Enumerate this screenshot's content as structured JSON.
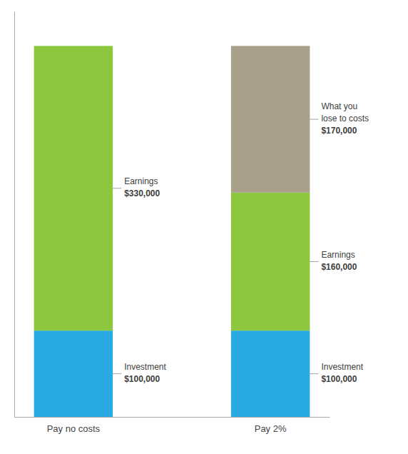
{
  "chart_data": {
    "type": "bar",
    "stacked": true,
    "categories": [
      "Pay no costs",
      "Pay 2%"
    ],
    "series": [
      {
        "name": "Investment",
        "color": "#29ABE2",
        "values": [
          100000,
          100000
        ],
        "value_labels": [
          "$100,000",
          "$100,000"
        ]
      },
      {
        "name": "Earnings",
        "color": "#8DC63F",
        "values": [
          330000,
          160000
        ],
        "value_labels": [
          "$330,000",
          "$160,000"
        ]
      },
      {
        "name": "What you\nlose to costs",
        "color": "#A8A08A",
        "values": [
          0,
          170000
        ],
        "value_labels": [
          null,
          "$170,000"
        ]
      }
    ],
    "ylim": [
      0,
      470000
    ],
    "tick_labels": "x",
    "data_labels": true
  }
}
